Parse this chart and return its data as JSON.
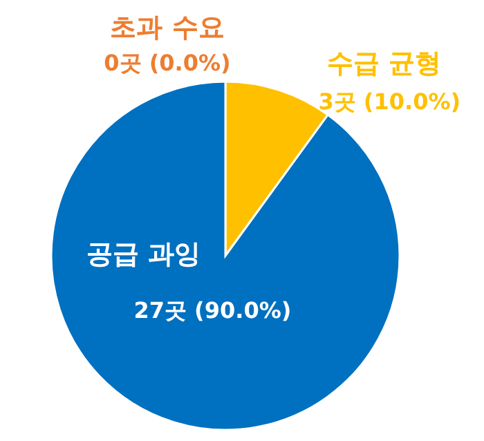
{
  "chart_data": {
    "type": "pie",
    "categories": [
      "초과 수요",
      "수급 균형",
      "공급 과잉"
    ],
    "values": [
      0,
      3,
      27
    ],
    "value_labels": [
      "0곳 (0.0%)",
      "3곳 (10.0%)",
      "27곳 (90.0%)"
    ],
    "colors": [
      "#ed7d31",
      "#ffc000",
      "#0070c0"
    ]
  }
}
